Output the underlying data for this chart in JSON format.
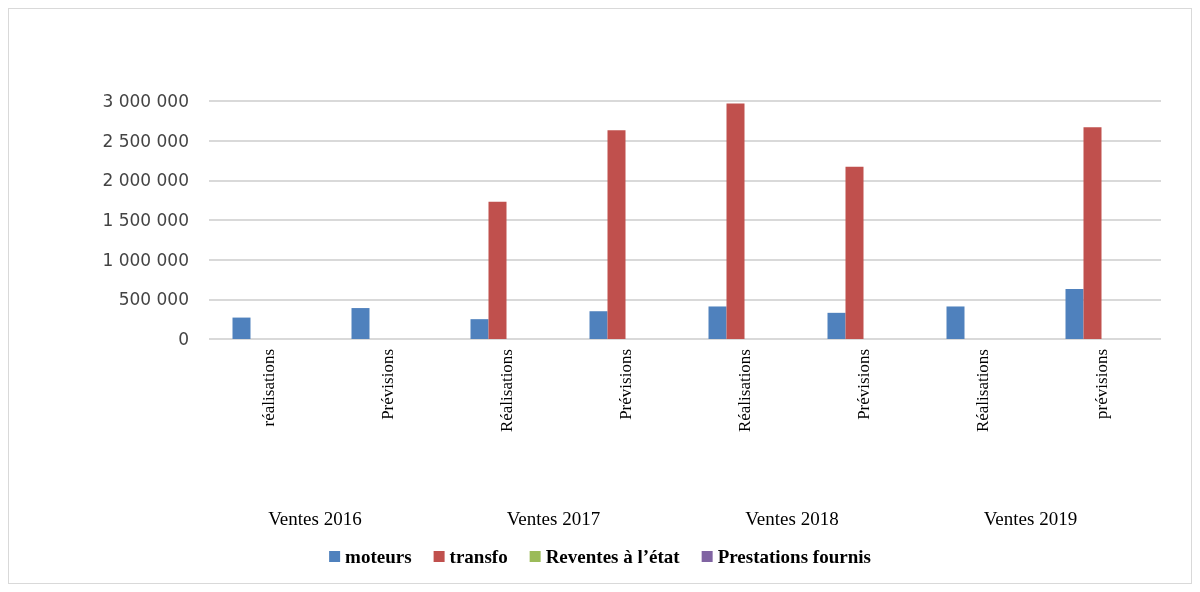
{
  "chart_data": {
    "type": "bar",
    "categories": [
      "réalisations",
      "Prévisions",
      "Réalisations",
      "Prévisions",
      "Réalisations",
      "Prévisions",
      "Réalisations",
      "prévisions"
    ],
    "series": [
      {
        "name": "moteurs",
        "color": "#4f81bd",
        "values": [
          270000,
          390000,
          250000,
          350000,
          410000,
          330000,
          410000,
          630000
        ]
      },
      {
        "name": "transfo",
        "color": "#c0504d",
        "values": [
          0,
          0,
          1730000,
          2630000,
          2970000,
          2170000,
          0,
          2670000
        ]
      },
      {
        "name": "Reventes à l’état",
        "color": "#9bbb59",
        "values": [
          0,
          0,
          0,
          0,
          0,
          0,
          0,
          0
        ]
      },
      {
        "name": "Prestations fournis",
        "color": "#8064a2",
        "values": [
          0,
          0,
          0,
          0,
          0,
          0,
          0,
          0
        ]
      }
    ],
    "ylim": [
      0,
      3000000
    ],
    "yticks": [
      {
        "value": 0,
        "label": "0"
      },
      {
        "value": 500000,
        "label": "500 000"
      },
      {
        "value": 1000000,
        "label": "1 000 000"
      },
      {
        "value": 1500000,
        "label": "1 500 000"
      },
      {
        "value": 2000000,
        "label": "2 000 000"
      },
      {
        "value": 2500000,
        "label": "2 500 000"
      },
      {
        "value": 3000000,
        "label": "3 000 000"
      }
    ],
    "annotations": [
      "Ventes 2016",
      "Ventes 2017",
      "Ventes 2018",
      "Ventes 2019"
    ],
    "grid": "y",
    "legend": "bottom"
  }
}
